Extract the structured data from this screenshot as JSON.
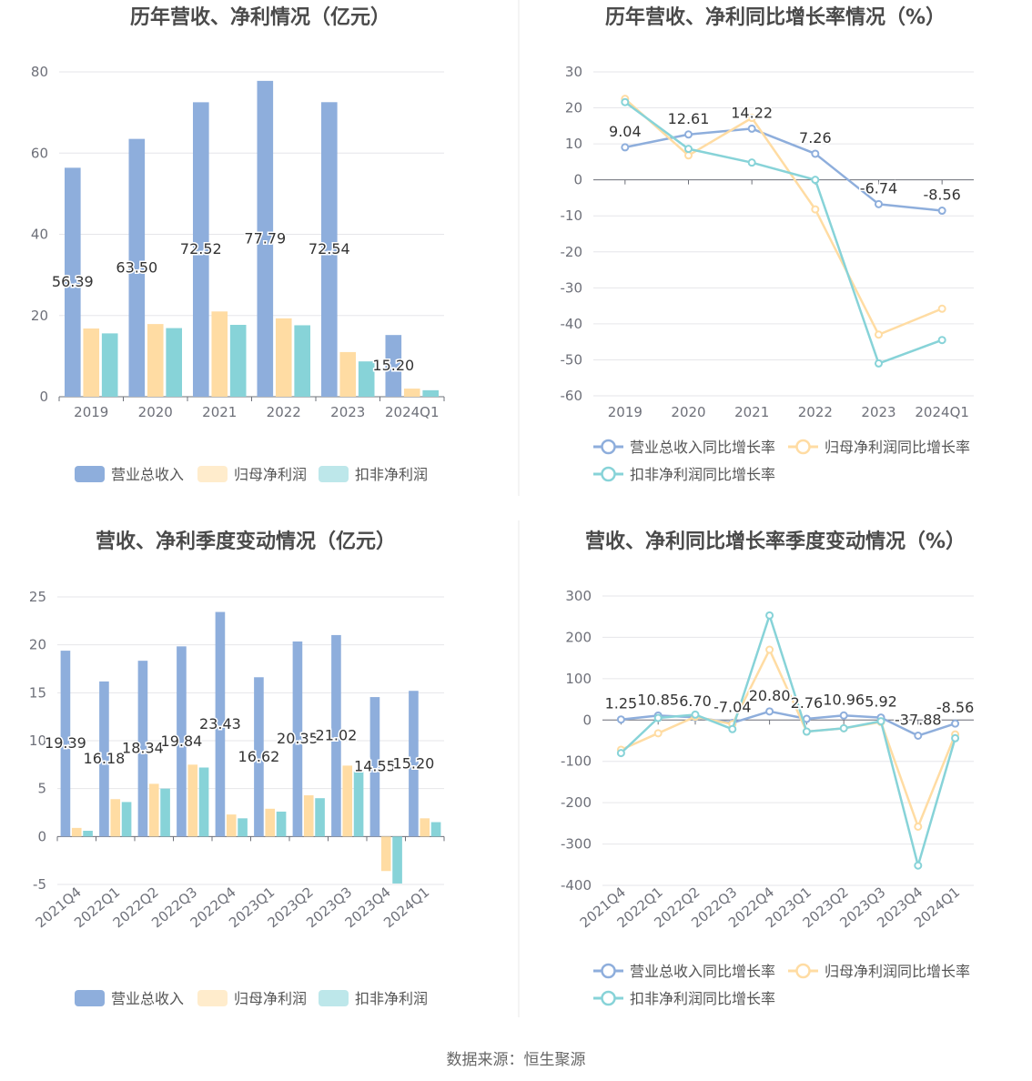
{
  "colors": {
    "revenue": "#8eaedc",
    "net_profit": "#ffdca3",
    "deducted_profit": "#87d3d8",
    "grid": "#e6e6ea",
    "axis": "#6e7079",
    "title": "#4a4a4a",
    "divider": "#e8e8e8"
  },
  "footer": "数据来源：恒生聚源",
  "chart_data": [
    {
      "type": "bar",
      "title": "历年营收、净利情况（亿元）",
      "categories": [
        "2019",
        "2020",
        "2021",
        "2022",
        "2023",
        "2024Q1"
      ],
      "ylim": [
        0,
        80
      ],
      "yticks": [
        "0",
        "20",
        "40",
        "60",
        "80"
      ],
      "legend": [
        "营业总收入",
        "归母净利润",
        "扣非净利润"
      ],
      "series": [
        {
          "name": "营业总收入",
          "values": [
            56.39,
            63.5,
            72.52,
            77.79,
            72.54,
            15.2
          ],
          "labels": [
            "56.39",
            "63.50",
            "72.52",
            "77.79",
            "72.54",
            "15.20"
          ]
        },
        {
          "name": "归母净利润",
          "values": [
            16.8,
            17.9,
            21.0,
            19.3,
            11.0,
            2.0
          ]
        },
        {
          "name": "扣非净利润",
          "values": [
            15.6,
            16.9,
            17.7,
            17.6,
            8.7,
            1.6
          ]
        }
      ]
    },
    {
      "type": "line",
      "title": "历年营收、净利同比增长率情况（%）",
      "categories": [
        "2019",
        "2020",
        "2021",
        "2022",
        "2023",
        "2024Q1"
      ],
      "ylim": [
        -60,
        30
      ],
      "yticks": [
        "30",
        "20",
        "10",
        "0",
        "-10",
        "-20",
        "-30",
        "-40",
        "-50",
        "-60"
      ],
      "legend": [
        "营业总收入同比增长率",
        "归母净利润同比增长率",
        "扣非净利润同比增长率"
      ],
      "series": [
        {
          "name": "营业总收入同比增长率",
          "values": [
            9.04,
            12.61,
            14.22,
            7.26,
            -6.74,
            -8.56
          ],
          "labels": [
            "9.04",
            "12.61",
            "14.22",
            "7.26",
            "-6.74",
            "-8.56"
          ]
        },
        {
          "name": "归母净利润同比增长率",
          "values": [
            22.5,
            6.8,
            17.2,
            -8.2,
            -43.0,
            -35.8
          ]
        },
        {
          "name": "扣非净利润同比增长率",
          "values": [
            21.6,
            8.6,
            4.8,
            0.0,
            -51.0,
            -44.5
          ]
        }
      ]
    },
    {
      "type": "bar",
      "title": "营收、净利季度变动情况（亿元）",
      "categories": [
        "2021Q4",
        "2022Q1",
        "2022Q2",
        "2022Q3",
        "2022Q4",
        "2023Q1",
        "2023Q2",
        "2023Q3",
        "2023Q4",
        "2024Q1"
      ],
      "ylim": [
        -5,
        25
      ],
      "yticks": [
        "25",
        "20",
        "15",
        "10",
        "5",
        "0",
        "-5"
      ],
      "legend": [
        "营业总收入",
        "归母净利润",
        "扣非净利润"
      ],
      "series": [
        {
          "name": "营业总收入",
          "values": [
            19.39,
            16.18,
            18.34,
            19.84,
            23.43,
            16.62,
            20.35,
            21.02,
            14.55,
            15.2
          ],
          "labels": [
            "19.39",
            "16.18",
            "18.34",
            "19.84",
            "23.43",
            "16.62",
            "20.35",
            "21.02",
            "14.55",
            "15.20"
          ]
        },
        {
          "name": "归母净利润",
          "values": [
            0.9,
            3.9,
            5.5,
            7.5,
            2.3,
            2.9,
            4.3,
            7.4,
            -3.6,
            1.9
          ]
        },
        {
          "name": "扣非净利润",
          "values": [
            0.6,
            3.6,
            5.0,
            7.2,
            1.9,
            2.6,
            4.0,
            6.8,
            -4.9,
            1.5
          ]
        }
      ]
    },
    {
      "type": "line",
      "title": "营收、净利同比增长率季度变动情况（%）",
      "categories": [
        "2021Q4",
        "2022Q1",
        "2022Q2",
        "2022Q3",
        "2022Q4",
        "2023Q1",
        "2023Q2",
        "2023Q3",
        "2023Q4",
        "2024Q1"
      ],
      "ylim": [
        -400,
        300
      ],
      "yticks": [
        "300",
        "200",
        "100",
        "0",
        "-100",
        "-200",
        "-300",
        "-400"
      ],
      "legend": [
        "营业总收入同比增长率",
        "归母净利润同比增长率",
        "扣非净利润同比增长率"
      ],
      "series": [
        {
          "name": "营业总收入同比增长率",
          "values": [
            1.25,
            10.85,
            6.7,
            -7.04,
            20.8,
            2.76,
            10.96,
            5.92,
            -37.88,
            -8.56
          ],
          "labels": [
            "1.25",
            "10.85",
            "6.70",
            "-7.04",
            "20.80",
            "2.76",
            "10.96",
            "5.92",
            "-37.88",
            "-8.56"
          ]
        },
        {
          "name": "归母净利润同比增长率",
          "values": [
            -72,
            -32,
            8,
            -10,
            170,
            -28,
            -20,
            -5,
            -258,
            -35
          ]
        },
        {
          "name": "扣非净利润同比增长率",
          "values": [
            -80,
            5,
            13,
            -22,
            253,
            -28,
            -20,
            -3,
            -352,
            -44
          ]
        }
      ]
    }
  ]
}
